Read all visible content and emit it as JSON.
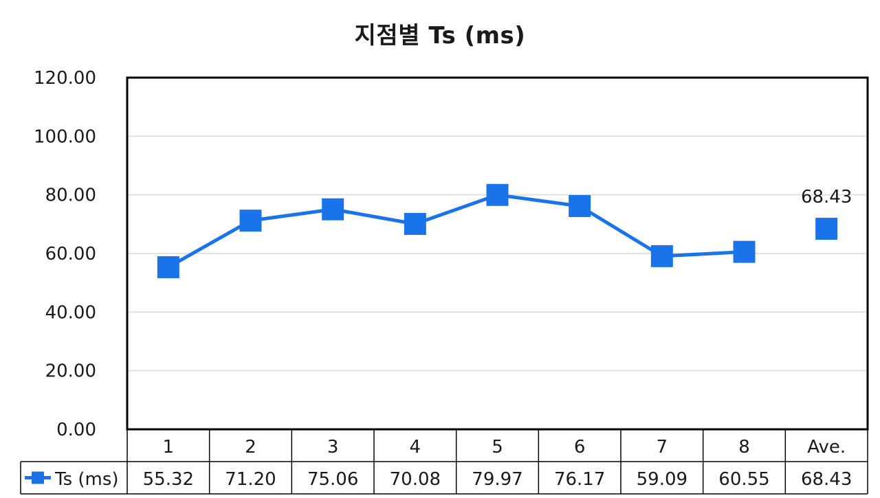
{
  "chart_data": {
    "type": "line",
    "title": "지점별 Ts (ms)",
    "categories": [
      "1",
      "2",
      "3",
      "4",
      "5",
      "6",
      "7",
      "8",
      "Ave."
    ],
    "series": [
      {
        "name": "Ts (ms)",
        "values": [
          55.32,
          71.2,
          75.06,
          70.08,
          79.97,
          76.17,
          59.09,
          60.55,
          68.43
        ],
        "value_labels": [
          "55.32",
          "71.20",
          "75.06",
          "70.08",
          "79.97",
          "76.17",
          "59.09",
          "60.55",
          "68.43"
        ],
        "connected_points": 8,
        "color": "#1a73e8"
      }
    ],
    "ylim": [
      0,
      120
    ],
    "yticks": [
      "0.00",
      "20.00",
      "40.00",
      "60.00",
      "80.00",
      "100.00",
      "120.00"
    ],
    "grid": true,
    "data_label": {
      "category": "Ave.",
      "text": "68.43"
    },
    "data_table": true
  }
}
